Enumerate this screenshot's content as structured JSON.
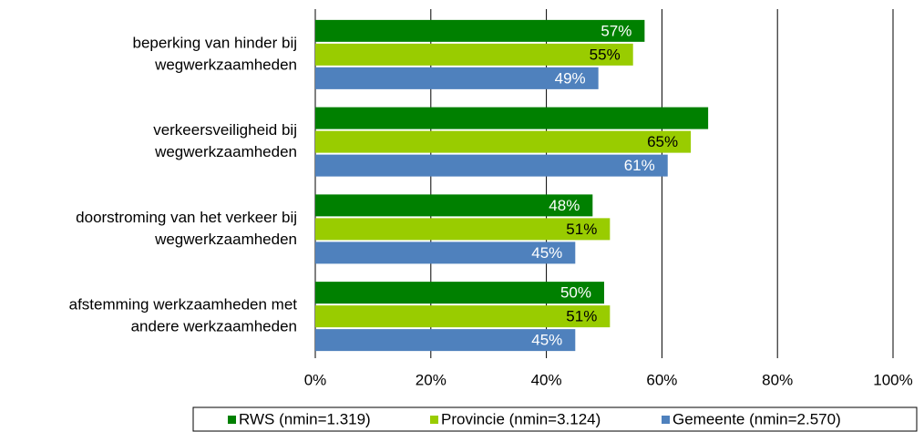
{
  "chart_data": {
    "type": "bar",
    "orientation": "horizontal",
    "categories": [
      [
        "beperking van hinder bij",
        "wegwerkzaamheden"
      ],
      [
        "verkeersveiligheid bij",
        "wegwerkzaamheden"
      ],
      [
        "doorstroming van het verkeer bij",
        "wegwerkzaamheden"
      ],
      [
        "afstemming werkzaamheden met",
        "andere werkzaamheden"
      ]
    ],
    "series": [
      {
        "name": "RWS (nmin=1.319)",
        "color": "#008000",
        "label_color": "#ffffff",
        "values": [
          57,
          68,
          48,
          50
        ],
        "value_labels": [
          "57%",
          null,
          "48%",
          "50%"
        ]
      },
      {
        "name": "Provincie (nmin=3.124)",
        "color": "#99cc00",
        "label_color": "#000000",
        "values": [
          55,
          65,
          51,
          51
        ],
        "value_labels": [
          "55%",
          "65%",
          "51%",
          "51%"
        ]
      },
      {
        "name": "Gemeente (nmin=2.570)",
        "color": "#4f81bd",
        "label_color": "#ffffff",
        "values": [
          49,
          61,
          45,
          45
        ],
        "value_labels": [
          "49%",
          "61%",
          "45%",
          "45%"
        ]
      }
    ],
    "xlim": [
      0,
      100
    ],
    "xticks": [
      {
        "value": 0,
        "label": "0%"
      },
      {
        "value": 20,
        "label": "20%"
      },
      {
        "value": 40,
        "label": "40%"
      },
      {
        "value": 60,
        "label": "60%"
      },
      {
        "value": 80,
        "label": "80%"
      },
      {
        "value": 100,
        "label": "100%"
      }
    ],
    "grid": true,
    "legend": "bottom"
  }
}
